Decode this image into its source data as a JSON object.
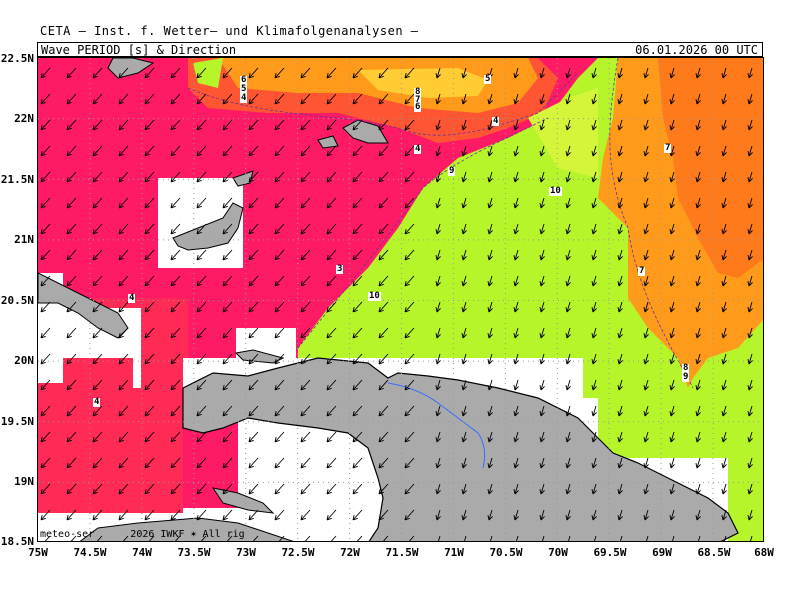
{
  "header": {
    "title": "CETA — Inst. f. Wetter— und Klimafolgenanalysen —",
    "subtitle": "Wave PERIOD [s] & Direction",
    "datetime": "06.01.2026 00 UTC"
  },
  "axes": {
    "y_labels": [
      "22.5N",
      "22N",
      "21.5N",
      "21N",
      "20.5N",
      "20N",
      "19.5N",
      "19N",
      "18.5N"
    ],
    "x_labels": [
      "75W",
      "74.5W",
      "74W",
      "73.5W",
      "73W",
      "72.5W",
      "72W",
      "71.5W",
      "71W",
      "70.5W",
      "70W",
      "69.5W",
      "69W",
      "68.5W",
      "68W"
    ],
    "lat_range": [
      18.5,
      22.5
    ],
    "lon_range": [
      -75,
      -68
    ]
  },
  "contour_labels": [
    "6",
    "5",
    "4",
    "8",
    "7",
    "6",
    "5",
    "4",
    "4",
    "9",
    "10",
    "7",
    "3",
    "10",
    "7",
    "8",
    "9",
    "4",
    "4"
  ],
  "watermark": "meteo-ser      2026 IWKF ✶ All rig   ",
  "colors": {
    "period_3_4": "#ff1a66",
    "period_4_5": "#ff2a55",
    "period_5_6": "#ff5533",
    "period_6_7": "#ff7a1a",
    "period_7_8": "#ff9a1a",
    "period_8_9": "#ffcc33",
    "period_9_10": "#d4f53a",
    "period_10_plus": "#b5f52a",
    "land": "#aaaaaa",
    "river": "#3a6bff"
  }
}
